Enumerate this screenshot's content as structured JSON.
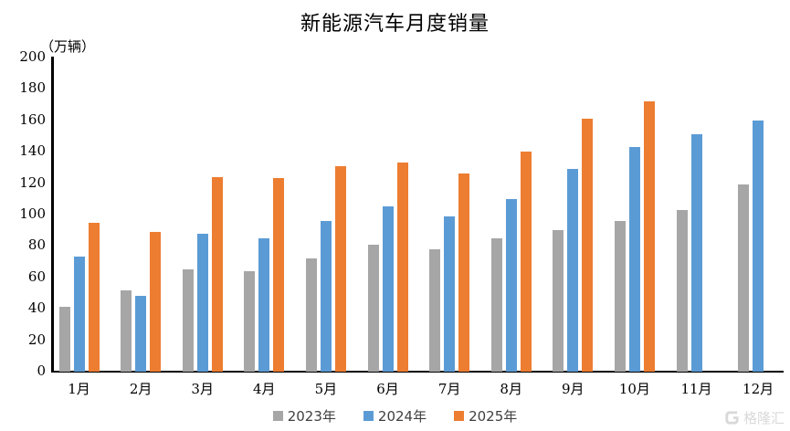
{
  "chart_data": {
    "type": "bar",
    "title": "新能源汽车月度销量",
    "unit_label": "（万辆）",
    "categories": [
      "1月",
      "2月",
      "3月",
      "4月",
      "5月",
      "6月",
      "7月",
      "8月",
      "9月",
      "10月",
      "11月",
      "12月"
    ],
    "series": [
      {
        "name": "2023年",
        "color": "#A6A6A6",
        "values": [
          41,
          52,
          65,
          64,
          72,
          81,
          78,
          85,
          90,
          96,
          103,
          119
        ]
      },
      {
        "name": "2024年",
        "color": "#5B9BD5",
        "values": [
          73,
          48,
          88,
          85,
          96,
          105,
          99,
          110,
          129,
          143,
          151,
          160
        ]
      },
      {
        "name": "2025年",
        "color": "#ED7D31",
        "values": [
          95,
          89,
          124,
          123,
          131,
          133,
          126,
          140,
          161,
          172,
          null,
          null
        ]
      }
    ],
    "ylim": [
      0,
      200
    ],
    "ytick_step": 20,
    "grid": false,
    "legend_position": "bottom",
    "axis_color": "#000000"
  },
  "watermark": {
    "text": "格隆汇",
    "logo": "gelonghui-logo"
  }
}
